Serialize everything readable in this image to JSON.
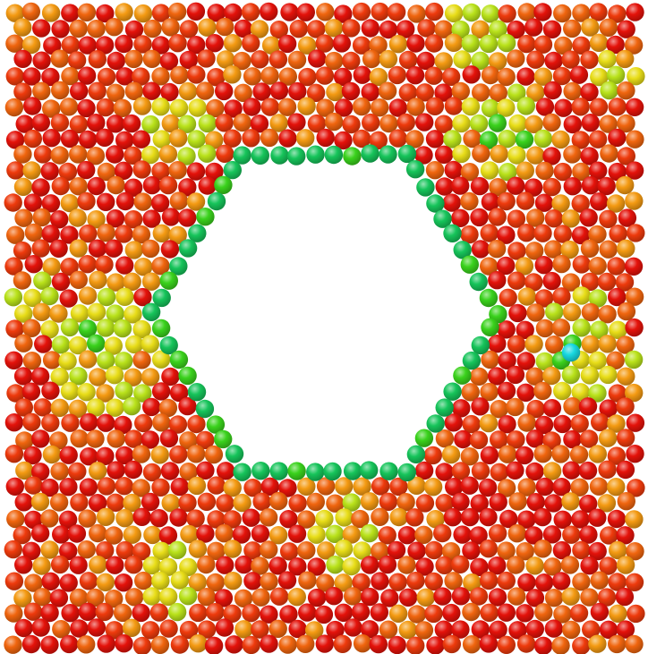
{
  "image": {
    "subject": "atomistic-particle-packing-with-central-void",
    "background_color": "#ffffff",
    "colors": {
      "red": "#e4120a",
      "red_orange": "#ee3a0c",
      "orange": "#f0650e",
      "amber": "#f49a12",
      "yellow": "#e8dd18",
      "yellow_green": "#b9e21a",
      "green": "#3ad21c",
      "emerald": "#16c45a",
      "cyan": "#18d8e0"
    }
  }
}
